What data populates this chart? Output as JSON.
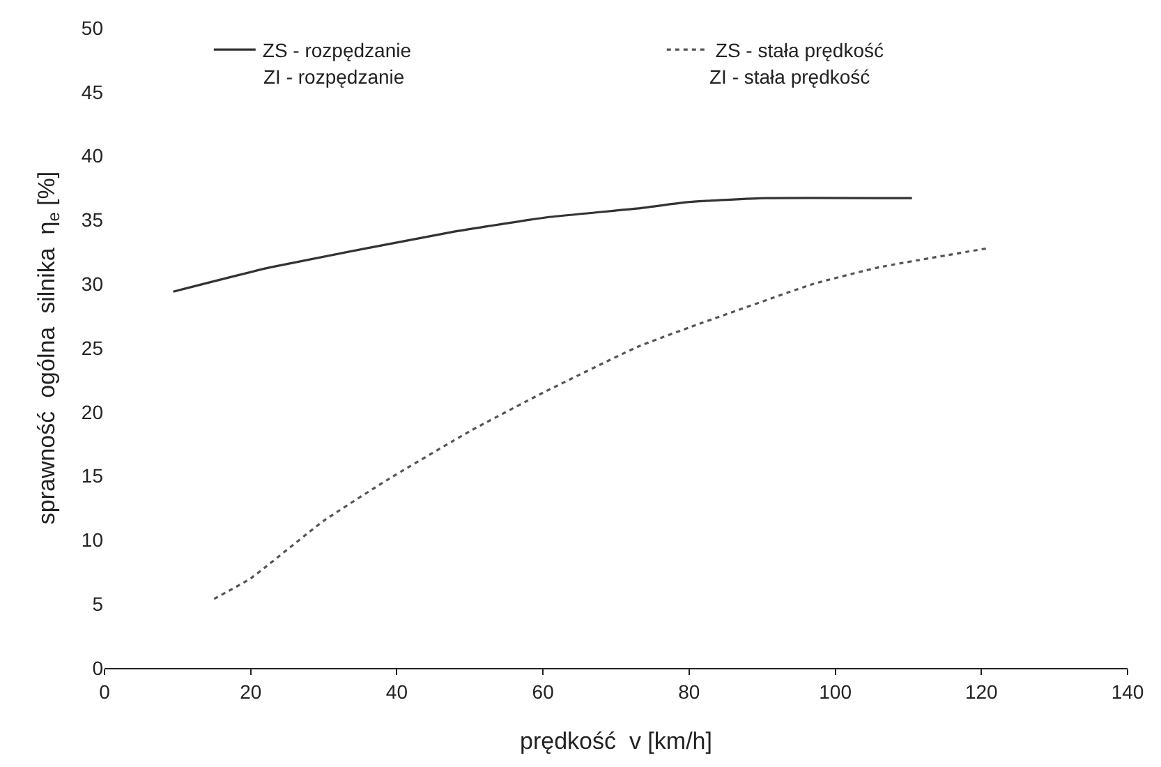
{
  "chart_data": {
    "type": "line",
    "xlabel": "prędkość  v [km/h]",
    "ylabel": "sprawność  ogólna  silnika  η$_{e}$ [%]",
    "xlim": [
      0,
      140
    ],
    "xticks": [
      0,
      20,
      40,
      60,
      80,
      100,
      120,
      140
    ],
    "ylim": [
      0,
      50
    ],
    "yticks": [
      0,
      5,
      10,
      15,
      20,
      25,
      30,
      35,
      40,
      45,
      50
    ],
    "legend": "top",
    "marker": "none",
    "series": [
      {
        "name": "ZS - rozpędzanie",
        "color": "#333333",
        "line_style": "solid",
        "x": [
          9.4,
          22.7,
          48,
          60.5,
          73,
          80,
          90.5,
          110.5
        ],
        "values": [
          29.4,
          31.3,
          34.1,
          35.2,
          35.9,
          36.4,
          36.7,
          36.7
        ]
      },
      {
        "name": "ZS - stała prędkość",
        "color": "#555555",
        "line_style": "dotted",
        "x": [
          15,
          20,
          30,
          39,
          50,
          60,
          73,
          81,
          97,
          106,
          121
        ],
        "values": [
          5.4,
          7.0,
          11.5,
          14.8,
          18.5,
          21.5,
          25.1,
          26.8,
          30.0,
          31.3,
          32.8
        ]
      }
    ],
    "annotations": [
      "ZI - rozpędzanie",
      "ZI - stała prędkość"
    ]
  }
}
